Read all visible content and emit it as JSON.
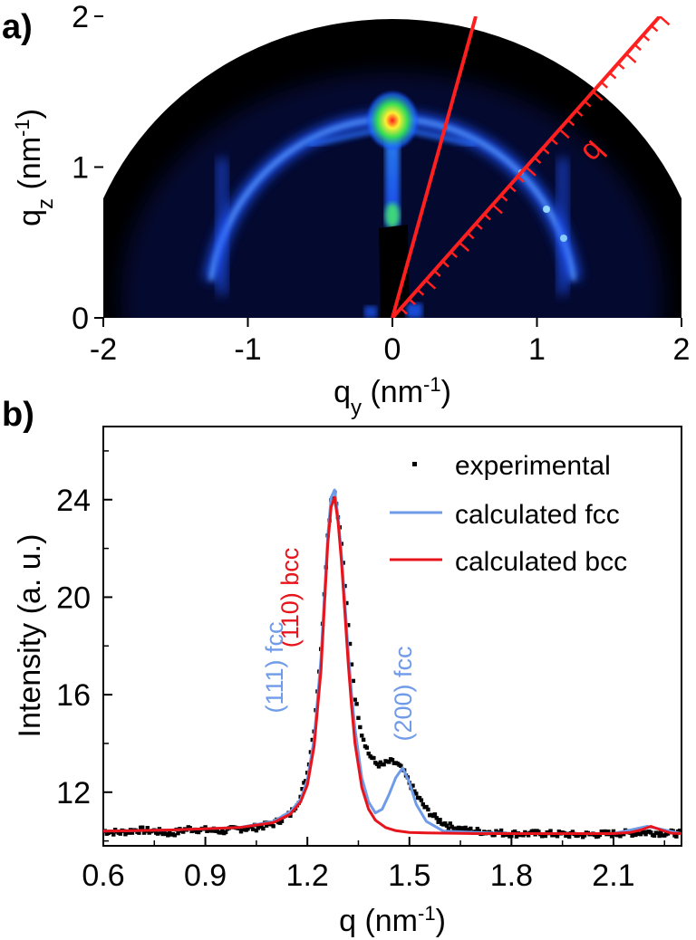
{
  "panel_a": {
    "label": "a)",
    "x_ticks": [
      "-2",
      "-1",
      "0",
      "1",
      "2"
    ],
    "y_ticks": [
      "0",
      "1",
      "2"
    ],
    "x_title": "q",
    "x_title_sub": "y",
    "x_title_unit_open": " (nm",
    "x_title_unit_sup": "-1",
    "x_title_unit_close": ")",
    "y_title": "q",
    "y_title_sub": "z",
    "y_title_unit_open": " (nm",
    "y_title_unit_sup": "-1",
    "y_title_unit_close": ")",
    "q_label": "q",
    "colors": {
      "background": "#000000",
      "ring": "#3c78ff",
      "line": "#ff2020"
    }
  },
  "panel_b": {
    "label": "b)",
    "annotations": {
      "bcc110": "(110) bcc",
      "fcc111": "(111) fcc",
      "fcc200": "(200) fcc"
    },
    "colors": {
      "fcc": "#6f9be8",
      "bcc": "#e8141c",
      "experimental": "#000000"
    }
  },
  "chart_data": [
    {
      "type": "heatmap",
      "title": "",
      "xlabel": "q_y (nm^-1)",
      "ylabel": "q_z (nm^-1)",
      "xlim": [
        -2,
        2
      ],
      "ylim": [
        0,
        2
      ],
      "x_ticks": [
        -2,
        -1,
        0,
        1,
        2
      ],
      "y_ticks": [
        0,
        1,
        2
      ],
      "features": {
        "ring_radius": 1.27,
        "peak_qz": 1.34,
        "peak_qy": 0.0,
        "colormap": "black-blue-green-yellow-red"
      }
    },
    {
      "type": "line",
      "title": "",
      "xlabel": "q (nm",
      "xlabel_sup": "-1",
      "xlabel_close": ")",
      "ylabel": "Intensity (a. u.)",
      "xlim": [
        0.6,
        2.3
      ],
      "ylim": [
        9.8,
        27
      ],
      "x_ticks": [
        0.6,
        0.9,
        1.2,
        1.5,
        1.8,
        2.1
      ],
      "x_tick_labels": [
        "0.6",
        "0.9",
        "1.2",
        "1.5",
        "1.8",
        "2.1"
      ],
      "y_ticks": [
        12,
        16,
        20,
        24
      ],
      "y_tick_labels": [
        "12",
        "16",
        "20",
        "24"
      ],
      "grid": false,
      "legend": "top-right",
      "series": [
        {
          "name": "experimental",
          "style": "points",
          "color": "#000000",
          "x": [
            0.6,
            0.65,
            0.7,
            0.75,
            0.8,
            0.85,
            0.9,
            0.95,
            1.0,
            1.05,
            1.1,
            1.15,
            1.18,
            1.2,
            1.22,
            1.24,
            1.25,
            1.26,
            1.27,
            1.28,
            1.29,
            1.3,
            1.31,
            1.32,
            1.33,
            1.34,
            1.36,
            1.38,
            1.4,
            1.42,
            1.44,
            1.46,
            1.48,
            1.5,
            1.52,
            1.55,
            1.58,
            1.62,
            1.66,
            1.7,
            1.8,
            1.9,
            2.0,
            2.1,
            2.2,
            2.3
          ],
          "y": [
            10.4,
            10.35,
            10.45,
            10.4,
            10.3,
            10.5,
            10.45,
            10.4,
            10.5,
            10.55,
            10.7,
            11.1,
            11.8,
            12.8,
            14.6,
            17.8,
            20.2,
            22.5,
            24.0,
            24.3,
            23.4,
            22.2,
            20.5,
            18.8,
            17.3,
            15.9,
            14.4,
            13.6,
            13.2,
            13.1,
            13.25,
            13.2,
            12.9,
            12.4,
            11.9,
            11.3,
            10.9,
            10.6,
            10.45,
            10.4,
            10.3,
            10.3,
            10.25,
            10.3,
            10.35,
            10.3
          ]
        },
        {
          "name": "calculated fcc",
          "style": "line",
          "color": "#6f9be8",
          "x": [
            0.6,
            0.8,
            1.0,
            1.1,
            1.15,
            1.18,
            1.2,
            1.22,
            1.24,
            1.25,
            1.26,
            1.27,
            1.28,
            1.29,
            1.3,
            1.31,
            1.32,
            1.33,
            1.34,
            1.36,
            1.38,
            1.4,
            1.42,
            1.44,
            1.46,
            1.48,
            1.5,
            1.52,
            1.55,
            1.6,
            1.7,
            1.8,
            1.9,
            2.0,
            2.1,
            2.15,
            2.2,
            2.25,
            2.3
          ],
          "y": [
            10.4,
            10.45,
            10.55,
            10.8,
            11.2,
            11.7,
            12.5,
            14.2,
            17.5,
            20.0,
            22.5,
            24.1,
            24.4,
            23.3,
            21.8,
            19.8,
            17.8,
            16.0,
            14.6,
            12.6,
            11.6,
            11.15,
            11.3,
            11.9,
            12.6,
            13.0,
            12.4,
            11.5,
            10.8,
            10.4,
            10.35,
            10.3,
            10.3,
            10.3,
            10.3,
            10.45,
            10.6,
            10.45,
            10.3
          ]
        },
        {
          "name": "calculated bcc",
          "style": "line",
          "color": "#e8141c",
          "x": [
            0.6,
            0.8,
            1.0,
            1.1,
            1.15,
            1.18,
            1.2,
            1.22,
            1.24,
            1.25,
            1.26,
            1.27,
            1.28,
            1.29,
            1.3,
            1.31,
            1.32,
            1.33,
            1.34,
            1.36,
            1.38,
            1.4,
            1.43,
            1.46,
            1.5,
            1.55,
            1.6,
            1.7,
            1.8,
            1.9,
            2.0,
            2.1,
            2.15,
            2.18,
            2.21,
            2.24,
            2.27,
            2.3
          ],
          "y": [
            10.4,
            10.45,
            10.55,
            10.75,
            11.1,
            11.6,
            12.3,
            13.9,
            17.0,
            19.6,
            22.2,
            23.7,
            24.1,
            23.1,
            21.5,
            19.4,
            17.3,
            15.5,
            14.0,
            12.2,
            11.3,
            10.85,
            10.55,
            10.42,
            10.35,
            10.33,
            10.32,
            10.3,
            10.3,
            10.3,
            10.3,
            10.3,
            10.35,
            10.45,
            10.6,
            10.45,
            10.32,
            10.3
          ]
        }
      ]
    }
  ]
}
